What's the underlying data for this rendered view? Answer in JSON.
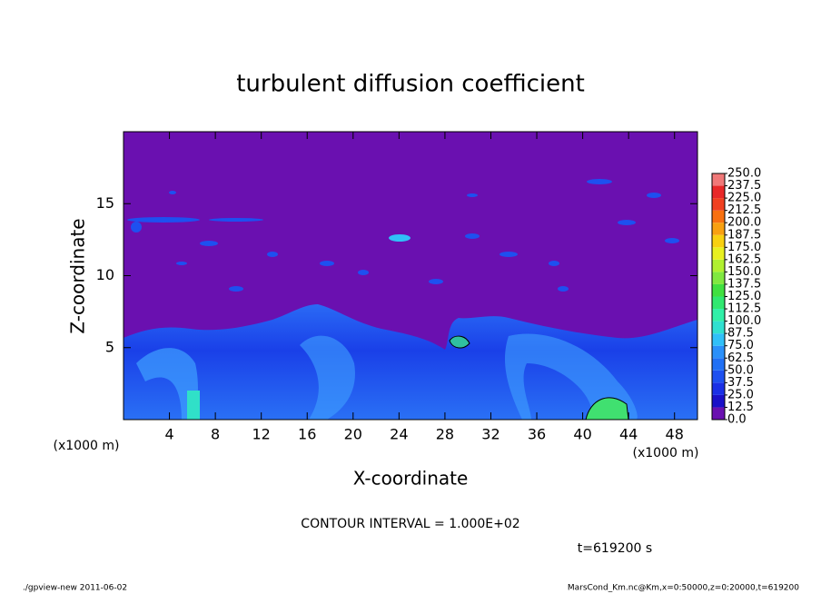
{
  "chart_data": {
    "type": "contour",
    "title": "turbulent diffusion coefficient",
    "xlabel": "X-coordinate",
    "ylabel": "Z-coordinate",
    "x_unit": "(x1000 m)",
    "xlim": [
      0,
      50
    ],
    "xticks": [
      4,
      8,
      12,
      16,
      20,
      24,
      28,
      32,
      36,
      40,
      44,
      48
    ],
    "ylim": [
      0,
      20
    ],
    "yticks": [
      5,
      10,
      15
    ],
    "colorbar": {
      "levels": [
        {
          "value": 0,
          "label": "0.0"
        },
        12.5,
        {
          "value": 25,
          "label": "25.0"
        },
        37.5,
        {
          "value": 50,
          "label": "50.0"
        },
        62.5,
        {
          "value": 75,
          "label": "75.0"
        },
        87.5,
        {
          "value": 100,
          "label": "100.0"
        },
        112.5,
        {
          "value": 125,
          "label": "125.0"
        },
        137.5,
        {
          "value": 150,
          "label": "150.0"
        },
        162.5,
        {
          "value": 175,
          "label": "175.0"
        },
        187.5,
        {
          "value": 200,
          "label": "200.0"
        },
        212.5,
        {
          "value": 225,
          "label": "225.0"
        },
        237.5,
        {
          "value": 250,
          "label": "250.0"
        }
      ],
      "colors": [
        "#6a10b0",
        "#1a10c8",
        "#1a30e6",
        "#1e50f0",
        "#2070f5",
        "#2a90fa",
        "#30c0f8",
        "#30e0d0",
        "#30f0a8",
        "#30e870",
        "#40e040",
        "#80e840",
        "#b0f030",
        "#e8f020",
        "#f8d010",
        "#f8a010",
        "#f87010",
        "#f04020",
        "#e82828",
        "#f07878"
      ]
    },
    "annotations": {
      "contour_interval": "CONTOUR INTERVAL = 1.000E+02",
      "time": "t=619200 s"
    },
    "footer": {
      "left": "./gpview-new   2011-06-02",
      "right": "MarsCond_Km.nc@Km,x=0:50000,z=0:20000,t=619200"
    }
  }
}
